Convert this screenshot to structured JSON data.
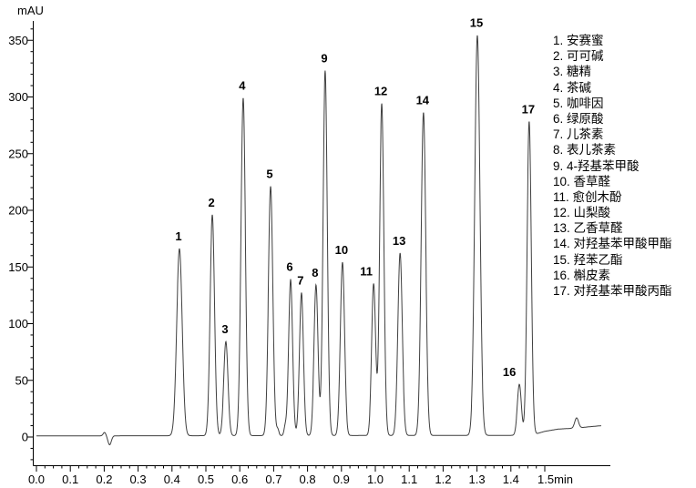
{
  "axes": {
    "y_unit_label": "mAU",
    "y_ticks": [
      0,
      50,
      100,
      150,
      200,
      250,
      300,
      350
    ],
    "x_ticks": [
      {
        "v": 0.0,
        "label": "0.0"
      },
      {
        "v": 0.1,
        "label": "0.1"
      },
      {
        "v": 0.2,
        "label": "0.2"
      },
      {
        "v": 0.3,
        "label": "0.3"
      },
      {
        "v": 0.4,
        "label": "0.4"
      },
      {
        "v": 0.5,
        "label": "0.5"
      },
      {
        "v": 0.6,
        "label": "0.6"
      },
      {
        "v": 0.7,
        "label": "0.7"
      },
      {
        "v": 0.8,
        "label": "0.8"
      },
      {
        "v": 0.9,
        "label": "0.9"
      },
      {
        "v": 1.0,
        "label": "1.0"
      },
      {
        "v": 1.1,
        "label": "1.1"
      },
      {
        "v": 1.2,
        "label": "1.2"
      },
      {
        "v": 1.3,
        "label": "1.3"
      },
      {
        "v": 1.4,
        "label": "1.4"
      },
      {
        "v": 1.5,
        "label": "1.5min"
      }
    ]
  },
  "chart_data": {
    "type": "line",
    "title": "",
    "xlabel": "min",
    "ylabel": "mAU",
    "xlim": [
      0,
      1.69
    ],
    "ylim": [
      -26,
      367
    ],
    "grid": false,
    "legend_position": "right",
    "trace_color": "#3f3f3f",
    "baseline_mAU": [
      [
        0,
        1
      ],
      [
        1.46,
        1.5
      ],
      [
        1.5,
        5
      ],
      [
        1.54,
        7
      ],
      [
        1.6,
        8
      ],
      [
        1.63,
        9
      ],
      [
        1.667,
        10
      ]
    ],
    "trace_end_min": 1.667,
    "peaks": [
      {
        "num": 1,
        "name": "安赛蜜",
        "rt_min": 0.422,
        "height_mAU": 165,
        "sigma_min": 0.0081
      },
      {
        "num": 2,
        "name": "可可碱",
        "rt_min": 0.519,
        "height_mAU": 195,
        "sigma_min": 0.0065
      },
      {
        "num": 3,
        "name": "糖精",
        "rt_min": 0.559,
        "height_mAU": 83,
        "sigma_min": 0.0062
      },
      {
        "num": 4,
        "name": "茶碱",
        "rt_min": 0.61,
        "height_mAU": 298,
        "sigma_min": 0.0065
      },
      {
        "num": 5,
        "name": "咖啡因",
        "rt_min": 0.691,
        "height_mAU": 220,
        "sigma_min": 0.0065
      },
      {
        "num": 6,
        "name": "绿原酸",
        "rt_min": 0.75,
        "height_mAU": 138,
        "sigma_min": 0.0059
      },
      {
        "num": 7,
        "name": "儿茶素",
        "rt_min": 0.782,
        "height_mAU": 126,
        "sigma_min": 0.0059
      },
      {
        "num": 8,
        "name": "表儿茶素",
        "rt_min": 0.825,
        "height_mAU": 133,
        "sigma_min": 0.0059
      },
      {
        "num": 9,
        "name": "4-羟基苯甲酸",
        "rt_min": 0.852,
        "height_mAU": 322,
        "sigma_min": 0.0062
      },
      {
        "num": 10,
        "name": "香草醛",
        "rt_min": 0.903,
        "height_mAU": 153,
        "sigma_min": 0.0062
      },
      {
        "num": 11,
        "name": "愈创木酚",
        "rt_min": 0.995,
        "height_mAU": 134,
        "sigma_min": 0.0059,
        "label_dx": -7
      },
      {
        "num": 12,
        "name": "山梨酸",
        "rt_min": 1.019,
        "height_mAU": 293,
        "sigma_min": 0.0062
      },
      {
        "num": 13,
        "name": "乙香草醛",
        "rt_min": 1.073,
        "height_mAU": 161,
        "sigma_min": 0.0065
      },
      {
        "num": 14,
        "name": "对羟基苯甲酸甲酯",
        "rt_min": 1.142,
        "height_mAU": 285,
        "sigma_min": 0.0068
      },
      {
        "num": 15,
        "name": "羟苯乙酯",
        "rt_min": 1.301,
        "height_mAU": 353,
        "sigma_min": 0.0076
      },
      {
        "num": 16,
        "name": "槲皮素",
        "rt_min": 1.425,
        "height_mAU": 45,
        "sigma_min": 0.0059,
        "label_dx": -10
      },
      {
        "num": 17,
        "name": "对羟基苯甲酸丙酯",
        "rt_min": 1.454,
        "height_mAU": 277,
        "sigma_min": 0.0062
      }
    ],
    "baseline_artifacts": [
      {
        "name": "injection-noise-rise",
        "t_min": 0.201,
        "amp_mAU": 3,
        "sigma_min": 0.004
      },
      {
        "name": "injection-noise-dip",
        "t_min": 0.216,
        "amp_mAU": -8,
        "sigma_min": 0.005
      },
      {
        "name": "minor-bump-a",
        "t_min": 0.712,
        "amp_mAU": 5.5,
        "sigma_min": 0.0035
      },
      {
        "name": "minor-bump-b",
        "t_min": 0.734,
        "amp_mAU": 7.5,
        "sigma_min": 0.0035
      },
      {
        "name": "late-minor-bump",
        "t_min": 1.594,
        "amp_mAU": 9,
        "sigma_min": 0.0055
      }
    ]
  }
}
